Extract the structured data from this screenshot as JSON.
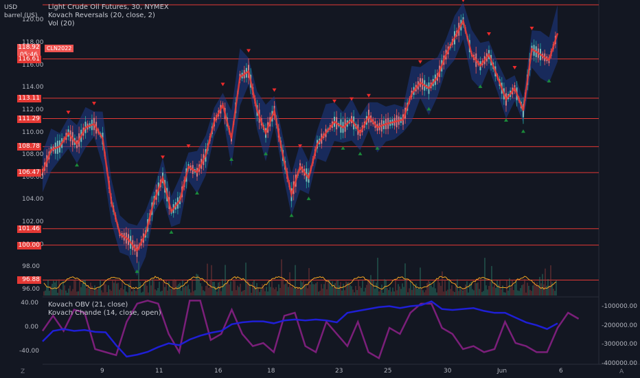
{
  "header": {
    "currency": "USD",
    "unit": "barrel (US)",
    "title": "Light Crude Oil Futures, 30, NYMEX",
    "indicator1": "Kovach Reversals (20, close, 2)",
    "indicator2": "Vol (20)",
    "lower_indicator1": "Kovach OBV (21, close)",
    "lower_indicator2": "Kovach Chande (14, close, open)"
  },
  "symbol_tag": "CLN2022",
  "last_price": "118.92",
  "countdown": "05:46",
  "level_tags": [
    "116.61",
    "113.11",
    "111.29",
    "108.78",
    "106.47",
    "101.46",
    "100.00",
    "96.88"
  ],
  "price_axis": [
    "120.00",
    "118.00",
    "116.00",
    "114.00",
    "112.00",
    "110.00",
    "108.00",
    "106.00",
    "104.00",
    "102.00",
    "100.00",
    "98.00",
    "96.00"
  ],
  "lower_left_axis": [
    "40.00",
    "0.00",
    "-40.00"
  ],
  "lower_right_axis": [
    "-100000.00",
    "-200000.00",
    "-300000.00",
    "-400000.00"
  ],
  "x_axis": [
    "9",
    "11",
    "16",
    "18",
    "23",
    "25",
    "30",
    "Jun",
    "6"
  ],
  "corner_left": "Z",
  "corner_right": "A",
  "colors": {
    "background": "#131722",
    "price_line": "#e53935",
    "band": "#1e3a8a",
    "obv": "#1f1fd6",
    "chande": "#7b1f7a",
    "volume_osc": "#f5a623"
  },
  "chart_data": {
    "type": "line",
    "symbol": "CLN2022",
    "upper": {
      "ylim": [
        95.5,
        121.5
      ],
      "horizontal_levels": [
        116.61,
        113.11,
        111.29,
        108.78,
        106.47,
        101.46,
        100.0,
        96.88
      ],
      "x": [
        0,
        3,
        6,
        9,
        12,
        15,
        18,
        21,
        24,
        27,
        30,
        33,
        36,
        39,
        42,
        45,
        48,
        51,
        54,
        57,
        60,
        63,
        66,
        69,
        72,
        75,
        78,
        81,
        84,
        87,
        90,
        93,
        96,
        99,
        102,
        105,
        108,
        111,
        114,
        117,
        120,
        123,
        126,
        129,
        132,
        135,
        138,
        141,
        144,
        147,
        150,
        153,
        156,
        159,
        162,
        165,
        168,
        171,
        174,
        177,
        180
      ],
      "close": [
        106.5,
        108.5,
        108.8,
        110,
        109,
        110.5,
        110.8,
        109.5,
        104,
        101,
        100.5,
        99.5,
        101,
        104,
        106,
        103,
        104,
        107,
        106.5,
        108,
        111,
        112.5,
        109.5,
        115,
        115.5,
        112,
        110,
        112,
        108,
        104.5,
        107,
        106,
        109,
        110,
        111,
        110.5,
        111.2,
        110,
        111.5,
        110.5,
        110.8,
        111,
        111.2,
        113.5,
        114.5,
        114,
        115,
        117,
        118.5,
        120,
        117,
        116,
        117,
        115,
        113,
        114,
        112,
        117.5,
        117,
        116.5,
        118.9
      ]
    },
    "lower": {
      "ylim_left": [
        -60,
        50
      ],
      "ylim_right": [
        -400000,
        -50000
      ],
      "series": [
        {
          "name": "Kovach OBV (21, close)",
          "values": [
            -280000,
            -225000,
            -215000,
            -225000,
            -220000,
            -230000,
            -232000,
            -300000,
            -360000,
            -350000,
            -335000,
            -310000,
            -290000,
            -300000,
            -270000,
            -250000,
            -235000,
            -225000,
            -190000,
            -180000,
            -175000,
            -175000,
            -185000,
            -170000,
            -165000,
            -170000,
            -165000,
            -170000,
            -180000,
            -130000,
            -120000,
            -110000,
            -100000,
            -95000,
            -105000,
            -95000,
            -90000,
            -70000,
            -110000,
            -115000,
            -110000,
            -105000,
            -120000,
            -130000,
            -130000,
            -155000,
            -180000,
            -195000,
            -215000,
            -185000
          ]
        },
        {
          "name": "Kovach Chande (14, close, open)",
          "values": [
            -5,
            20,
            -5,
            30,
            25,
            -35,
            -40,
            -45,
            10,
            40,
            45,
            40,
            -10,
            -40,
            45,
            45,
            -20,
            -10,
            30,
            -10,
            -30,
            -25,
            -40,
            20,
            25,
            -30,
            -40,
            10,
            -10,
            -30,
            10,
            -40,
            -50,
            0,
            -10,
            25,
            40,
            40,
            0,
            -10,
            -35,
            -30,
            -40,
            -35,
            10,
            -25,
            -30,
            -40,
            -40,
            0,
            25,
            15
          ]
        }
      ]
    }
  }
}
